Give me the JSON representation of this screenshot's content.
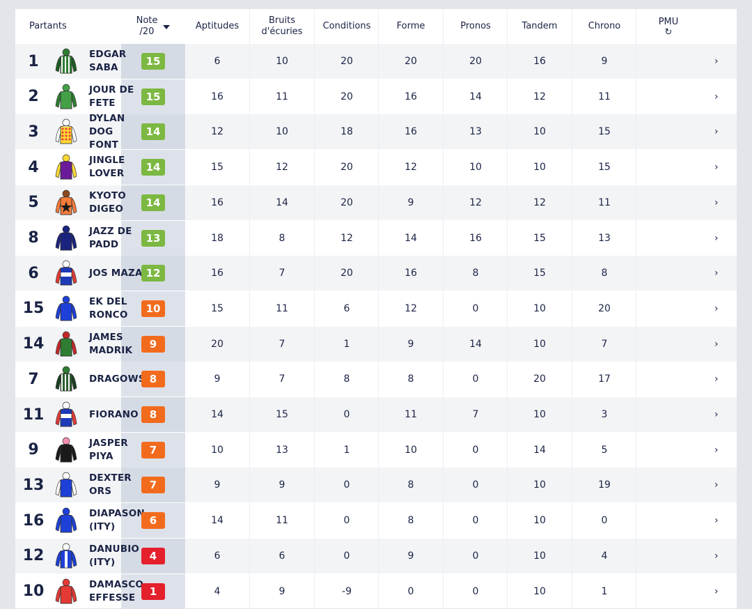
{
  "header": {
    "partants": "Partants",
    "note_line1": "Note",
    "note_line2": "/20",
    "aptitudes": "Aptitudes",
    "bruits_line1": "Bruits",
    "bruits_line2": "d'écuries",
    "conditions": "Conditions",
    "forme": "Forme",
    "pronos": "Pronos",
    "tandem": "Tandem",
    "chrono": "Chrono",
    "pmu": "PMU",
    "refresh_icon": "↻"
  },
  "colors": {
    "green": "#7cb842",
    "orange": "#f26b1d",
    "red": "#e5202d"
  },
  "rows": [
    {
      "num": "1",
      "name": "EDGAR SABA",
      "note": "15",
      "level": "green",
      "silk": {
        "body": "#2e7d32",
        "sleeve": "#1b5e20",
        "cap": "#2e7d32",
        "pattern": "stripes",
        "patcolor": "#ffffff"
      },
      "apt": "6",
      "bruits": "10",
      "cond": "20",
      "forme": "20",
      "pronos": "20",
      "tandem": "16",
      "chrono": "9",
      "chev": "›"
    },
    {
      "num": "2",
      "name": "JOUR DE FETE",
      "note": "15",
      "level": "green",
      "silk": {
        "body": "#43a047",
        "sleeve": "#2e7d32",
        "cap": "#43a047",
        "pattern": "plain",
        "patcolor": "#ffffff"
      },
      "apt": "16",
      "bruits": "11",
      "cond": "20",
      "forme": "16",
      "pronos": "14",
      "tandem": "12",
      "chrono": "11",
      "chev": "›"
    },
    {
      "num": "3",
      "name": "DYLAN DOG FONT",
      "note": "14",
      "level": "green",
      "silk": {
        "body": "#ffffff",
        "sleeve": "#ffffff",
        "cap": "#ffffff",
        "pattern": "dots",
        "patcolor": "#e53935"
      },
      "apt": "12",
      "bruits": "10",
      "cond": "18",
      "forme": "16",
      "pronos": "13",
      "tandem": "10",
      "chrono": "15",
      "chev": "›"
    },
    {
      "num": "4",
      "name": "JINGLE LOVER",
      "note": "14",
      "level": "green",
      "silk": {
        "body": "#6a1b9a",
        "sleeve": "#fdd835",
        "cap": "#fdd835",
        "pattern": "plain",
        "patcolor": "#ffffff"
      },
      "apt": "15",
      "bruits": "12",
      "cond": "20",
      "forme": "12",
      "pronos": "10",
      "tandem": "10",
      "chrono": "15",
      "chev": "›"
    },
    {
      "num": "5",
      "name": "KYOTO DIGEO",
      "note": "14",
      "level": "green",
      "silk": {
        "body": "#f57c3a",
        "sleeve": "#f57c3a",
        "cap": "#8d4a1c",
        "pattern": "star",
        "patcolor": "#1a1a1a"
      },
      "apt": "16",
      "bruits": "14",
      "cond": "20",
      "forme": "9",
      "pronos": "12",
      "tandem": "12",
      "chrono": "11",
      "chev": "›"
    },
    {
      "num": "8",
      "name": "JAZZ DE PADD",
      "note": "13",
      "level": "green",
      "silk": {
        "body": "#1a237e",
        "sleeve": "#1a237e",
        "cap": "#1a237e",
        "pattern": "plain",
        "patcolor": "#ffffff"
      },
      "apt": "18",
      "bruits": "8",
      "cond": "12",
      "forme": "14",
      "pronos": "16",
      "tandem": "15",
      "chrono": "13",
      "chev": "›"
    },
    {
      "num": "6",
      "name": "JOS MAZA",
      "note": "12",
      "level": "green",
      "silk": {
        "body": "#1e3ab8",
        "sleeve": "#e53935",
        "cap": "#ffffff",
        "pattern": "band",
        "patcolor": "#ffffff"
      },
      "apt": "16",
      "bruits": "7",
      "cond": "20",
      "forme": "16",
      "pronos": "8",
      "tandem": "15",
      "chrono": "8",
      "chev": "›"
    },
    {
      "num": "15",
      "name": "EK DEL RONCO",
      "note": "10",
      "level": "orange",
      "silk": {
        "body": "#1e40d8",
        "sleeve": "#1e40d8",
        "cap": "#1e40d8",
        "pattern": "plain",
        "patcolor": "#ffffff"
      },
      "apt": "15",
      "bruits": "11",
      "cond": "6",
      "forme": "12",
      "pronos": "0",
      "tandem": "10",
      "chrono": "20",
      "chev": "›"
    },
    {
      "num": "14",
      "name": "JAMES MADRIK",
      "note": "9",
      "level": "orange",
      "silk": {
        "body": "#2e7d32",
        "sleeve": "#c62828",
        "cap": "#c62828",
        "pattern": "check",
        "patcolor": "#c62828"
      },
      "apt": "20",
      "bruits": "7",
      "cond": "1",
      "forme": "9",
      "pronos": "14",
      "tandem": "10",
      "chrono": "7",
      "chev": "›"
    },
    {
      "num": "7",
      "name": "DRAGOWS",
      "note": "8",
      "level": "orange",
      "silk": {
        "body": "#2e5d32",
        "sleeve": "#1b4020",
        "cap": "#2e7d32",
        "pattern": "stripes",
        "patcolor": "#ffffff"
      },
      "apt": "9",
      "bruits": "7",
      "cond": "8",
      "forme": "8",
      "pronos": "0",
      "tandem": "20",
      "chrono": "17",
      "chev": "›"
    },
    {
      "num": "11",
      "name": "FIORANO",
      "note": "8",
      "level": "orange",
      "silk": {
        "body": "#1e3ab8",
        "sleeve": "#e53935",
        "cap": "#ffffff",
        "pattern": "band",
        "patcolor": "#ffffff"
      },
      "apt": "14",
      "bruits": "15",
      "cond": "0",
      "forme": "11",
      "pronos": "7",
      "tandem": "10",
      "chrono": "3",
      "chev": "›"
    },
    {
      "num": "9",
      "name": "JASPER PIYA",
      "note": "7",
      "level": "orange",
      "silk": {
        "body": "#1a1a1a",
        "sleeve": "#1a1a1a",
        "cap": "#f48fb1",
        "pattern": "plain",
        "patcolor": "#f48fb1"
      },
      "apt": "10",
      "bruits": "13",
      "cond": "1",
      "forme": "10",
      "pronos": "0",
      "tandem": "14",
      "chrono": "5",
      "chev": "›"
    },
    {
      "num": "13",
      "name": "DEXTER ORS",
      "note": "7",
      "level": "orange",
      "silk": {
        "body": "#1e40d8",
        "sleeve": "#ffffff",
        "cap": "#ffffff",
        "pattern": "plain",
        "patcolor": "#ffffff"
      },
      "apt": "9",
      "bruits": "9",
      "cond": "0",
      "forme": "8",
      "pronos": "0",
      "tandem": "10",
      "chrono": "19",
      "chev": "›"
    },
    {
      "num": "16",
      "name": "DIAPASON (ITY)",
      "note": "6",
      "level": "orange",
      "silk": {
        "body": "#1e40d8",
        "sleeve": "#1e40d8",
        "cap": "#1e40d8",
        "pattern": "plain",
        "patcolor": "#ffffff"
      },
      "apt": "14",
      "bruits": "11",
      "cond": "0",
      "forme": "8",
      "pronos": "0",
      "tandem": "10",
      "chrono": "0",
      "chev": "›"
    },
    {
      "num": "12",
      "name": "DANUBIO (ITY)",
      "note": "4",
      "level": "red",
      "silk": {
        "body": "#1e40d8",
        "sleeve": "#1e40d8",
        "cap": "#ffffff",
        "pattern": "stripe1",
        "patcolor": "#ffffff"
      },
      "apt": "6",
      "bruits": "6",
      "cond": "0",
      "forme": "9",
      "pronos": "0",
      "tandem": "10",
      "chrono": "4",
      "chev": "›"
    },
    {
      "num": "10",
      "name": "DAMASCO EFFESSE",
      "note": "1",
      "level": "red",
      "silk": {
        "body": "#e53935",
        "sleeve": "#e53935",
        "cap": "#e53935",
        "pattern": "plain",
        "patcolor": "#ffffff"
      },
      "apt": "4",
      "bruits": "9",
      "cond": "-9",
      "forme": "0",
      "pronos": "0",
      "tandem": "10",
      "chrono": "1",
      "chev": "›"
    }
  ]
}
